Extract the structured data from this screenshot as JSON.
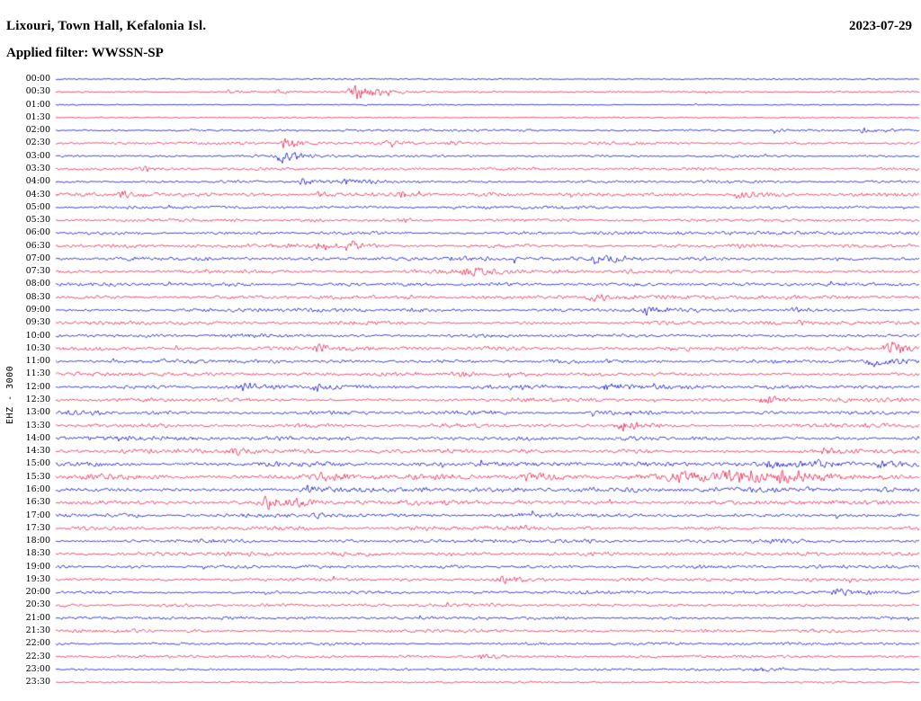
{
  "header": {
    "station_title": "Lixouri, Town Hall, Kefalonia Isl.",
    "date": "2023-07-29",
    "filter_label": "Applied filter: WWSSN-SP"
  },
  "axis": {
    "left_label": "EHZ - 3000"
  },
  "chart_data": {
    "type": "line",
    "subtype": "helicorder-day-plot",
    "title": "Lixouri, Town Hall, Kefalonia Isl.",
    "date": "2023-07-29",
    "filter": "WWSSN-SP",
    "ylabel": "EHZ - 3000",
    "row_interval_minutes": 30,
    "start_time": "00:00",
    "end_time": "23:30",
    "grid": false,
    "legend": "none",
    "trace_colors": {
      "blue": "#0000cc",
      "red": "#ea1747"
    },
    "rows": [
      {
        "time": "00:00",
        "color": "blue",
        "noise": 0.6
      },
      {
        "time": "00:30",
        "color": "red",
        "noise": 0.9
      },
      {
        "time": "01:00",
        "color": "blue",
        "noise": 0.6
      },
      {
        "time": "01:30",
        "color": "red",
        "noise": 0.6
      },
      {
        "time": "02:00",
        "color": "blue",
        "noise": 1.1
      },
      {
        "time": "02:30",
        "color": "red",
        "noise": 1.4
      },
      {
        "time": "03:00",
        "color": "blue",
        "noise": 1.2
      },
      {
        "time": "03:30",
        "color": "red",
        "noise": 1.5
      },
      {
        "time": "04:00",
        "color": "blue",
        "noise": 1.5
      },
      {
        "time": "04:30",
        "color": "red",
        "noise": 1.7
      },
      {
        "time": "05:00",
        "color": "blue",
        "noise": 1.5
      },
      {
        "time": "05:30",
        "color": "red",
        "noise": 1.5
      },
      {
        "time": "06:00",
        "color": "blue",
        "noise": 1.7
      },
      {
        "time": "06:30",
        "color": "red",
        "noise": 1.9
      },
      {
        "time": "07:00",
        "color": "blue",
        "noise": 1.8
      },
      {
        "time": "07:30",
        "color": "red",
        "noise": 1.9
      },
      {
        "time": "08:00",
        "color": "blue",
        "noise": 1.8
      },
      {
        "time": "08:30",
        "color": "red",
        "noise": 2.0
      },
      {
        "time": "09:00",
        "color": "blue",
        "noise": 1.9
      },
      {
        "time": "09:30",
        "color": "red",
        "noise": 2.0
      },
      {
        "time": "10:00",
        "color": "blue",
        "noise": 2.1
      },
      {
        "time": "10:30",
        "color": "red",
        "noise": 2.1
      },
      {
        "time": "11:00",
        "color": "blue",
        "noise": 2.0
      },
      {
        "time": "11:30",
        "color": "red",
        "noise": 2.0
      },
      {
        "time": "12:00",
        "color": "blue",
        "noise": 2.1
      },
      {
        "time": "12:30",
        "color": "red",
        "noise": 2.1
      },
      {
        "time": "13:00",
        "color": "blue",
        "noise": 2.2
      },
      {
        "time": "13:30",
        "color": "red",
        "noise": 2.1
      },
      {
        "time": "14:00",
        "color": "blue",
        "noise": 2.2
      },
      {
        "time": "14:30",
        "color": "red",
        "noise": 2.2
      },
      {
        "time": "15:00",
        "color": "blue",
        "noise": 2.3
      },
      {
        "time": "15:30",
        "color": "red",
        "noise": 2.8
      },
      {
        "time": "16:00",
        "color": "blue",
        "noise": 2.4
      },
      {
        "time": "16:30",
        "color": "red",
        "noise": 2.2
      },
      {
        "time": "17:00",
        "color": "blue",
        "noise": 2.1
      },
      {
        "time": "17:30",
        "color": "red",
        "noise": 2.0
      },
      {
        "time": "18:00",
        "color": "blue",
        "noise": 1.9
      },
      {
        "time": "18:30",
        "color": "red",
        "noise": 1.9
      },
      {
        "time": "19:00",
        "color": "blue",
        "noise": 1.8
      },
      {
        "time": "19:30",
        "color": "red",
        "noise": 1.8
      },
      {
        "time": "20:00",
        "color": "blue",
        "noise": 1.8
      },
      {
        "time": "20:30",
        "color": "red",
        "noise": 1.7
      },
      {
        "time": "21:00",
        "color": "blue",
        "noise": 1.6
      },
      {
        "time": "21:30",
        "color": "red",
        "noise": 1.6
      },
      {
        "time": "22:00",
        "color": "blue",
        "noise": 1.5
      },
      {
        "time": "22:30",
        "color": "red",
        "noise": 1.4
      },
      {
        "time": "23:00",
        "color": "blue",
        "noise": 1.3
      },
      {
        "time": "23:30",
        "color": "red",
        "noise": 1.1
      }
    ],
    "events": [
      {
        "time": "00:30",
        "x": 0.345,
        "amp": 9,
        "w": 14
      },
      {
        "time": "00:30",
        "x": 0.255,
        "amp": 3,
        "w": 6
      },
      {
        "time": "00:30",
        "x": 0.2,
        "amp": 2.5,
        "w": 5
      },
      {
        "time": "02:00",
        "x": 0.935,
        "amp": 3,
        "w": 6
      },
      {
        "time": "02:30",
        "x": 0.265,
        "amp": 7,
        "w": 8
      },
      {
        "time": "02:30",
        "x": 0.385,
        "amp": 5,
        "w": 7
      },
      {
        "time": "02:30",
        "x": 0.455,
        "amp": 3,
        "w": 6
      },
      {
        "time": "03:00",
        "x": 0.26,
        "amp": 8,
        "w": 9
      },
      {
        "time": "03:30",
        "x": 0.1,
        "amp": 3,
        "w": 6
      },
      {
        "time": "04:00",
        "x": 0.285,
        "amp": 6,
        "w": 8
      },
      {
        "time": "04:00",
        "x": 0.335,
        "amp": 4,
        "w": 7
      },
      {
        "time": "04:30",
        "x": 0.075,
        "amp": 5,
        "w": 9
      },
      {
        "time": "04:30",
        "x": 0.305,
        "amp": 4,
        "w": 7
      },
      {
        "time": "04:30",
        "x": 0.4,
        "amp": 4,
        "w": 8
      },
      {
        "time": "04:30",
        "x": 0.79,
        "amp": 4,
        "w": 8
      },
      {
        "time": "05:30",
        "x": 0.4,
        "amp": 3,
        "w": 6
      },
      {
        "time": "06:30",
        "x": 0.305,
        "amp": 4,
        "w": 7
      },
      {
        "time": "06:30",
        "x": 0.345,
        "amp": 4,
        "w": 7
      },
      {
        "time": "07:00",
        "x": 0.455,
        "amp": 4,
        "w": 7
      },
      {
        "time": "07:00",
        "x": 0.625,
        "amp": 6,
        "w": 9
      },
      {
        "time": "07:30",
        "x": 0.475,
        "amp": 6,
        "w": 9
      },
      {
        "time": "08:30",
        "x": 0.62,
        "amp": 5,
        "w": 8
      },
      {
        "time": "09:00",
        "x": 0.685,
        "amp": 6,
        "w": 9
      },
      {
        "time": "09:00",
        "x": 0.855,
        "amp": 3,
        "w": 6
      },
      {
        "time": "09:30",
        "x": 0.86,
        "amp": 3,
        "w": 6
      },
      {
        "time": "10:30",
        "x": 0.305,
        "amp": 6,
        "w": 9
      },
      {
        "time": "10:30",
        "x": 0.965,
        "amp": 8,
        "w": 9
      },
      {
        "time": "11:00",
        "x": 0.945,
        "amp": 6,
        "w": 9
      },
      {
        "time": "11:30",
        "x": 0.47,
        "amp": 3,
        "w": 6
      },
      {
        "time": "12:00",
        "x": 0.215,
        "amp": 4,
        "w": 7
      },
      {
        "time": "12:00",
        "x": 0.3,
        "amp": 5,
        "w": 8
      },
      {
        "time": "12:00",
        "x": 0.635,
        "amp": 5,
        "w": 8
      },
      {
        "time": "12:30",
        "x": 0.82,
        "amp": 7,
        "w": 8
      },
      {
        "time": "13:30",
        "x": 0.655,
        "amp": 7,
        "w": 9
      },
      {
        "time": "14:00",
        "x": 0.055,
        "amp": 3,
        "w": 6
      },
      {
        "time": "14:30",
        "x": 0.205,
        "amp": 5,
        "w": 8
      },
      {
        "time": "14:30",
        "x": 0.89,
        "amp": 4,
        "w": 7
      },
      {
        "time": "15:00",
        "x": 0.825,
        "amp": 6,
        "w": 10
      },
      {
        "time": "15:00",
        "x": 0.885,
        "amp": 5,
        "w": 9
      },
      {
        "time": "15:00",
        "x": 0.955,
        "amp": 4,
        "w": 8
      },
      {
        "time": "15:30",
        "x": 0.31,
        "amp": 4,
        "w": 8
      },
      {
        "time": "15:30",
        "x": 0.41,
        "amp": 4,
        "w": 9
      },
      {
        "time": "15:30",
        "x": 0.545,
        "amp": 5,
        "w": 10
      },
      {
        "time": "15:30",
        "x": 0.72,
        "amp": 6,
        "w": 18
      },
      {
        "time": "15:30",
        "x": 0.78,
        "amp": 7,
        "w": 18
      },
      {
        "time": "15:30",
        "x": 0.84,
        "amp": 6,
        "w": 14
      },
      {
        "time": "16:00",
        "x": 0.29,
        "amp": 5,
        "w": 9
      },
      {
        "time": "16:30",
        "x": 0.245,
        "amp": 6,
        "w": 9
      },
      {
        "time": "16:30",
        "x": 0.28,
        "amp": 4,
        "w": 7
      },
      {
        "time": "17:00",
        "x": 0.3,
        "amp": 3,
        "w": 6
      },
      {
        "time": "19:30",
        "x": 0.515,
        "amp": 6,
        "w": 8
      },
      {
        "time": "20:00",
        "x": 0.905,
        "amp": 6,
        "w": 10
      },
      {
        "time": "22:30",
        "x": 0.49,
        "amp": 3,
        "w": 6
      },
      {
        "time": "23:00",
        "x": 0.81,
        "amp": 3,
        "w": 6
      }
    ]
  }
}
